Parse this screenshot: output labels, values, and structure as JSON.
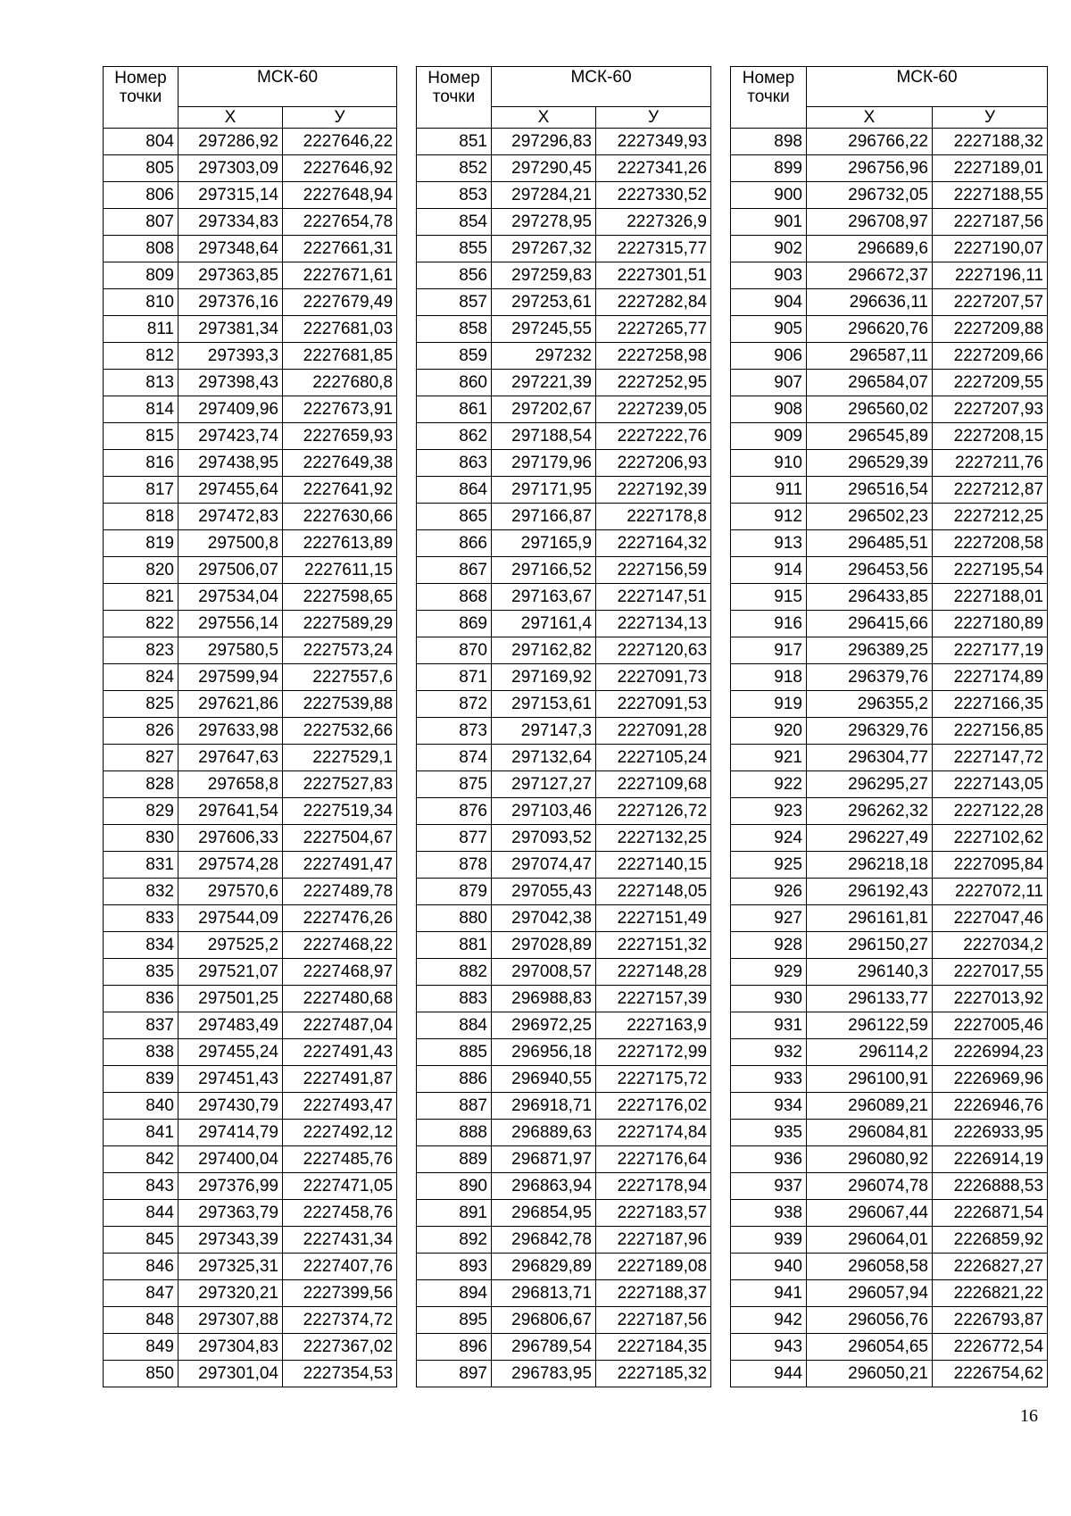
{
  "tables": [
    {
      "header": {
        "number": "Номер\nточки",
        "system": "МСК-60",
        "x": "Х",
        "y": "У"
      },
      "rows": [
        [
          "804",
          "297286,92",
          "2227646,22"
        ],
        [
          "805",
          "297303,09",
          "2227646,92"
        ],
        [
          "806",
          "297315,14",
          "2227648,94"
        ],
        [
          "807",
          "297334,83",
          "2227654,78"
        ],
        [
          "808",
          "297348,64",
          "2227661,31"
        ],
        [
          "809",
          "297363,85",
          "2227671,61"
        ],
        [
          "810",
          "297376,16",
          "2227679,49"
        ],
        [
          "811",
          "297381,34",
          "2227681,03"
        ],
        [
          "812",
          "297393,3",
          "2227681,85"
        ],
        [
          "813",
          "297398,43",
          "2227680,8"
        ],
        [
          "814",
          "297409,96",
          "2227673,91"
        ],
        [
          "815",
          "297423,74",
          "2227659,93"
        ],
        [
          "816",
          "297438,95",
          "2227649,38"
        ],
        [
          "817",
          "297455,64",
          "2227641,92"
        ],
        [
          "818",
          "297472,83",
          "2227630,66"
        ],
        [
          "819",
          "297500,8",
          "2227613,89"
        ],
        [
          "820",
          "297506,07",
          "2227611,15"
        ],
        [
          "821",
          "297534,04",
          "2227598,65"
        ],
        [
          "822",
          "297556,14",
          "2227589,29"
        ],
        [
          "823",
          "297580,5",
          "2227573,24"
        ],
        [
          "824",
          "297599,94",
          "2227557,6"
        ],
        [
          "825",
          "297621,86",
          "2227539,88"
        ],
        [
          "826",
          "297633,98",
          "2227532,66"
        ],
        [
          "827",
          "297647,63",
          "2227529,1"
        ],
        [
          "828",
          "297658,8",
          "2227527,83"
        ],
        [
          "829",
          "297641,54",
          "2227519,34"
        ],
        [
          "830",
          "297606,33",
          "2227504,67"
        ],
        [
          "831",
          "297574,28",
          "2227491,47"
        ],
        [
          "832",
          "297570,6",
          "2227489,78"
        ],
        [
          "833",
          "297544,09",
          "2227476,26"
        ],
        [
          "834",
          "297525,2",
          "2227468,22"
        ],
        [
          "835",
          "297521,07",
          "2227468,97"
        ],
        [
          "836",
          "297501,25",
          "2227480,68"
        ],
        [
          "837",
          "297483,49",
          "2227487,04"
        ],
        [
          "838",
          "297455,24",
          "2227491,43"
        ],
        [
          "839",
          "297451,43",
          "2227491,87"
        ],
        [
          "840",
          "297430,79",
          "2227493,47"
        ],
        [
          "841",
          "297414,79",
          "2227492,12"
        ],
        [
          "842",
          "297400,04",
          "2227485,76"
        ],
        [
          "843",
          "297376,99",
          "2227471,05"
        ],
        [
          "844",
          "297363,79",
          "2227458,76"
        ],
        [
          "845",
          "297343,39",
          "2227431,34"
        ],
        [
          "846",
          "297325,31",
          "2227407,76"
        ],
        [
          "847",
          "297320,21",
          "2227399,56"
        ],
        [
          "848",
          "297307,88",
          "2227374,72"
        ],
        [
          "849",
          "297304,83",
          "2227367,02"
        ],
        [
          "850",
          "297301,04",
          "2227354,53"
        ]
      ]
    },
    {
      "header": {
        "number": "Номер\nточки",
        "system": "МСК-60",
        "x": "Х",
        "y": "У"
      },
      "rows": [
        [
          "851",
          "297296,83",
          "2227349,93"
        ],
        [
          "852",
          "297290,45",
          "2227341,26"
        ],
        [
          "853",
          "297284,21",
          "2227330,52"
        ],
        [
          "854",
          "297278,95",
          "2227326,9"
        ],
        [
          "855",
          "297267,32",
          "2227315,77"
        ],
        [
          "856",
          "297259,83",
          "2227301,51"
        ],
        [
          "857",
          "297253,61",
          "2227282,84"
        ],
        [
          "858",
          "297245,55",
          "2227265,77"
        ],
        [
          "859",
          "297232",
          "2227258,98"
        ],
        [
          "860",
          "297221,39",
          "2227252,95"
        ],
        [
          "861",
          "297202,67",
          "2227239,05"
        ],
        [
          "862",
          "297188,54",
          "2227222,76"
        ],
        [
          "863",
          "297179,96",
          "2227206,93"
        ],
        [
          "864",
          "297171,95",
          "2227192,39"
        ],
        [
          "865",
          "297166,87",
          "2227178,8"
        ],
        [
          "866",
          "297165,9",
          "2227164,32"
        ],
        [
          "867",
          "297166,52",
          "2227156,59"
        ],
        [
          "868",
          "297163,67",
          "2227147,51"
        ],
        [
          "869",
          "297161,4",
          "2227134,13"
        ],
        [
          "870",
          "297162,82",
          "2227120,63"
        ],
        [
          "871",
          "297169,92",
          "2227091,73"
        ],
        [
          "872",
          "297153,61",
          "2227091,53"
        ],
        [
          "873",
          "297147,3",
          "2227091,28"
        ],
        [
          "874",
          "297132,64",
          "2227105,24"
        ],
        [
          "875",
          "297127,27",
          "2227109,68"
        ],
        [
          "876",
          "297103,46",
          "2227126,72"
        ],
        [
          "877",
          "297093,52",
          "2227132,25"
        ],
        [
          "878",
          "297074,47",
          "2227140,15"
        ],
        [
          "879",
          "297055,43",
          "2227148,05"
        ],
        [
          "880",
          "297042,38",
          "2227151,49"
        ],
        [
          "881",
          "297028,89",
          "2227151,32"
        ],
        [
          "882",
          "297008,57",
          "2227148,28"
        ],
        [
          "883",
          "296988,83",
          "2227157,39"
        ],
        [
          "884",
          "296972,25",
          "2227163,9"
        ],
        [
          "885",
          "296956,18",
          "2227172,99"
        ],
        [
          "886",
          "296940,55",
          "2227175,72"
        ],
        [
          "887",
          "296918,71",
          "2227176,02"
        ],
        [
          "888",
          "296889,63",
          "2227174,84"
        ],
        [
          "889",
          "296871,97",
          "2227176,64"
        ],
        [
          "890",
          "296863,94",
          "2227178,94"
        ],
        [
          "891",
          "296854,95",
          "2227183,57"
        ],
        [
          "892",
          "296842,78",
          "2227187,96"
        ],
        [
          "893",
          "296829,89",
          "2227189,08"
        ],
        [
          "894",
          "296813,71",
          "2227188,37"
        ],
        [
          "895",
          "296806,67",
          "2227187,56"
        ],
        [
          "896",
          "296789,54",
          "2227184,35"
        ],
        [
          "897",
          "296783,95",
          "2227185,32"
        ]
      ]
    },
    {
      "header": {
        "number": "Номер\nточки",
        "system": "МСК-60",
        "x": "Х",
        "y": "У"
      },
      "rows": [
        [
          "898",
          "296766,22",
          "2227188,32"
        ],
        [
          "899",
          "296756,96",
          "2227189,01"
        ],
        [
          "900",
          "296732,05",
          "2227188,55"
        ],
        [
          "901",
          "296708,97",
          "2227187,56"
        ],
        [
          "902",
          "296689,6",
          "2227190,07"
        ],
        [
          "903",
          "296672,37",
          "2227196,11"
        ],
        [
          "904",
          "296636,11",
          "2227207,57"
        ],
        [
          "905",
          "296620,76",
          "2227209,88"
        ],
        [
          "906",
          "296587,11",
          "2227209,66"
        ],
        [
          "907",
          "296584,07",
          "2227209,55"
        ],
        [
          "908",
          "296560,02",
          "2227207,93"
        ],
        [
          "909",
          "296545,89",
          "2227208,15"
        ],
        [
          "910",
          "296529,39",
          "2227211,76"
        ],
        [
          "911",
          "296516,54",
          "2227212,87"
        ],
        [
          "912",
          "296502,23",
          "2227212,25"
        ],
        [
          "913",
          "296485,51",
          "2227208,58"
        ],
        [
          "914",
          "296453,56",
          "2227195,54"
        ],
        [
          "915",
          "296433,85",
          "2227188,01"
        ],
        [
          "916",
          "296415,66",
          "2227180,89"
        ],
        [
          "917",
          "296389,25",
          "2227177,19"
        ],
        [
          "918",
          "296379,76",
          "2227174,89"
        ],
        [
          "919",
          "296355,2",
          "2227166,35"
        ],
        [
          "920",
          "296329,76",
          "2227156,85"
        ],
        [
          "921",
          "296304,77",
          "2227147,72"
        ],
        [
          "922",
          "296295,27",
          "2227143,05"
        ],
        [
          "923",
          "296262,32",
          "2227122,28"
        ],
        [
          "924",
          "296227,49",
          "2227102,62"
        ],
        [
          "925",
          "296218,18",
          "2227095,84"
        ],
        [
          "926",
          "296192,43",
          "2227072,11"
        ],
        [
          "927",
          "296161,81",
          "2227047,46"
        ],
        [
          "928",
          "296150,27",
          "2227034,2"
        ],
        [
          "929",
          "296140,3",
          "2227017,55"
        ],
        [
          "930",
          "296133,77",
          "2227013,92"
        ],
        [
          "931",
          "296122,59",
          "2227005,46"
        ],
        [
          "932",
          "296114,2",
          "2226994,23"
        ],
        [
          "933",
          "296100,91",
          "2226969,96"
        ],
        [
          "934",
          "296089,21",
          "2226946,76"
        ],
        [
          "935",
          "296084,81",
          "2226933,95"
        ],
        [
          "936",
          "296080,92",
          "2226914,19"
        ],
        [
          "937",
          "296074,78",
          "2226888,53"
        ],
        [
          "938",
          "296067,44",
          "2226871,54"
        ],
        [
          "939",
          "296064,01",
          "2226859,92"
        ],
        [
          "940",
          "296058,58",
          "2226827,27"
        ],
        [
          "941",
          "296057,94",
          "2226821,22"
        ],
        [
          "942",
          "296056,76",
          "2226793,87"
        ],
        [
          "943",
          "296054,65",
          "2226772,54"
        ],
        [
          "944",
          "296050,21",
          "2226754,62"
        ]
      ]
    }
  ],
  "page_number": "16"
}
